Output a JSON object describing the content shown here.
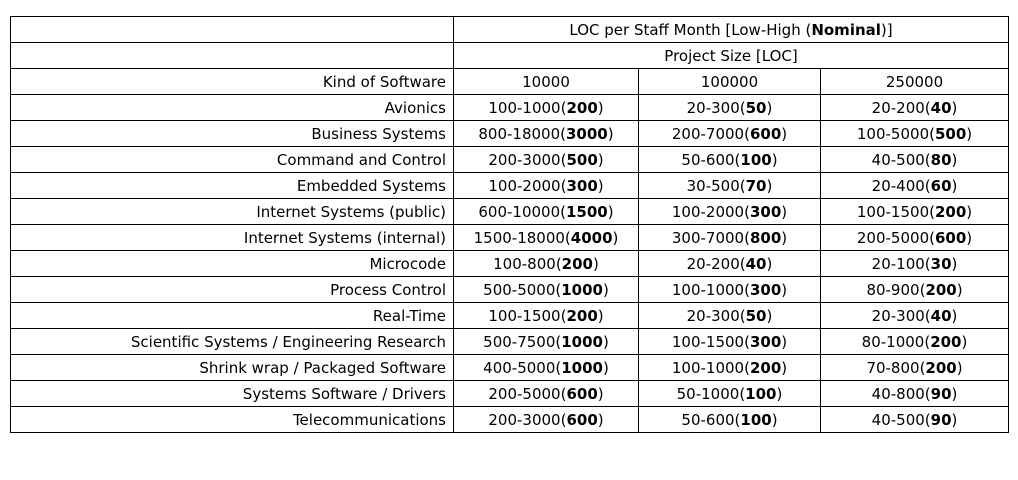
{
  "table": {
    "title": {
      "pre": "LOC per Staff Month [Low-High (",
      "bold": "Nominal",
      "post": ")]"
    },
    "subtitle": "Project Size [LOC]",
    "kind_header": "Kind of Software",
    "size_headers": [
      "10000",
      "100000",
      "250000"
    ],
    "rows": [
      {
        "kind": "Avionics",
        "cells": [
          [
            "100-1000(",
            "200",
            ")"
          ],
          [
            "20-300(",
            "50",
            ")"
          ],
          [
            "20-200(",
            "40",
            ")"
          ]
        ]
      },
      {
        "kind": "Business Systems",
        "cells": [
          [
            "800-18000(",
            "3000",
            ")"
          ],
          [
            "200-7000(",
            "600",
            ")"
          ],
          [
            "100-5000(",
            "500",
            ")"
          ]
        ]
      },
      {
        "kind": "Command and Control",
        "cells": [
          [
            "200-3000(",
            "500",
            ")"
          ],
          [
            "50-600(",
            "100",
            ")"
          ],
          [
            "40-500(",
            "80",
            ")"
          ]
        ]
      },
      {
        "kind": "Embedded Systems",
        "cells": [
          [
            "100-2000(",
            "300",
            ")"
          ],
          [
            "30-500(",
            "70",
            ")"
          ],
          [
            "20-400(",
            "60",
            ")"
          ]
        ]
      },
      {
        "kind": "Internet Systems (public)",
        "cells": [
          [
            "600-10000(",
            "1500",
            ")"
          ],
          [
            "100-2000(",
            "300",
            ")"
          ],
          [
            "100-1500(",
            "200",
            ")"
          ]
        ]
      },
      {
        "kind": "Internet Systems (internal)",
        "cells": [
          [
            "1500-18000(",
            "4000",
            ")"
          ],
          [
            "300-7000(",
            "800",
            ")"
          ],
          [
            "200-5000(",
            "600",
            ")"
          ]
        ]
      },
      {
        "kind": "Microcode",
        "cells": [
          [
            "100-800(",
            "200",
            ")"
          ],
          [
            "20-200(",
            "40",
            ")"
          ],
          [
            "20-100(",
            "30",
            ")"
          ]
        ]
      },
      {
        "kind": "Process Control",
        "cells": [
          [
            "500-5000(",
            "1000",
            ")"
          ],
          [
            "100-1000(",
            "300",
            ")"
          ],
          [
            "80-900(",
            "200",
            ")"
          ]
        ]
      },
      {
        "kind": "Real-Time",
        "cells": [
          [
            "100-1500(",
            "200",
            ")"
          ],
          [
            "20-300(",
            "50",
            ")"
          ],
          [
            "20-300(",
            "40",
            ")"
          ]
        ]
      },
      {
        "kind": "Scientific Systems / Engineering Research",
        "cells": [
          [
            "500-7500(",
            "1000",
            ")"
          ],
          [
            "100-1500(",
            "300",
            ")"
          ],
          [
            "80-1000(",
            "200",
            ")"
          ]
        ]
      },
      {
        "kind": "Shrink wrap / Packaged Software",
        "cells": [
          [
            "400-5000(",
            "1000",
            ")"
          ],
          [
            "100-1000(",
            "200",
            ")"
          ],
          [
            "70-800(",
            "200",
            ")"
          ]
        ]
      },
      {
        "kind": "Systems Software / Drivers",
        "cells": [
          [
            "200-5000(",
            "600",
            ")"
          ],
          [
            "50-1000(",
            "100",
            ")"
          ],
          [
            "40-800(",
            "90",
            ")"
          ]
        ]
      },
      {
        "kind": "Telecommunications",
        "cells": [
          [
            "200-3000(",
            "600",
            ")"
          ],
          [
            "50-600(",
            "100",
            ")"
          ],
          [
            "40-500(",
            "90",
            ")"
          ]
        ]
      }
    ]
  }
}
